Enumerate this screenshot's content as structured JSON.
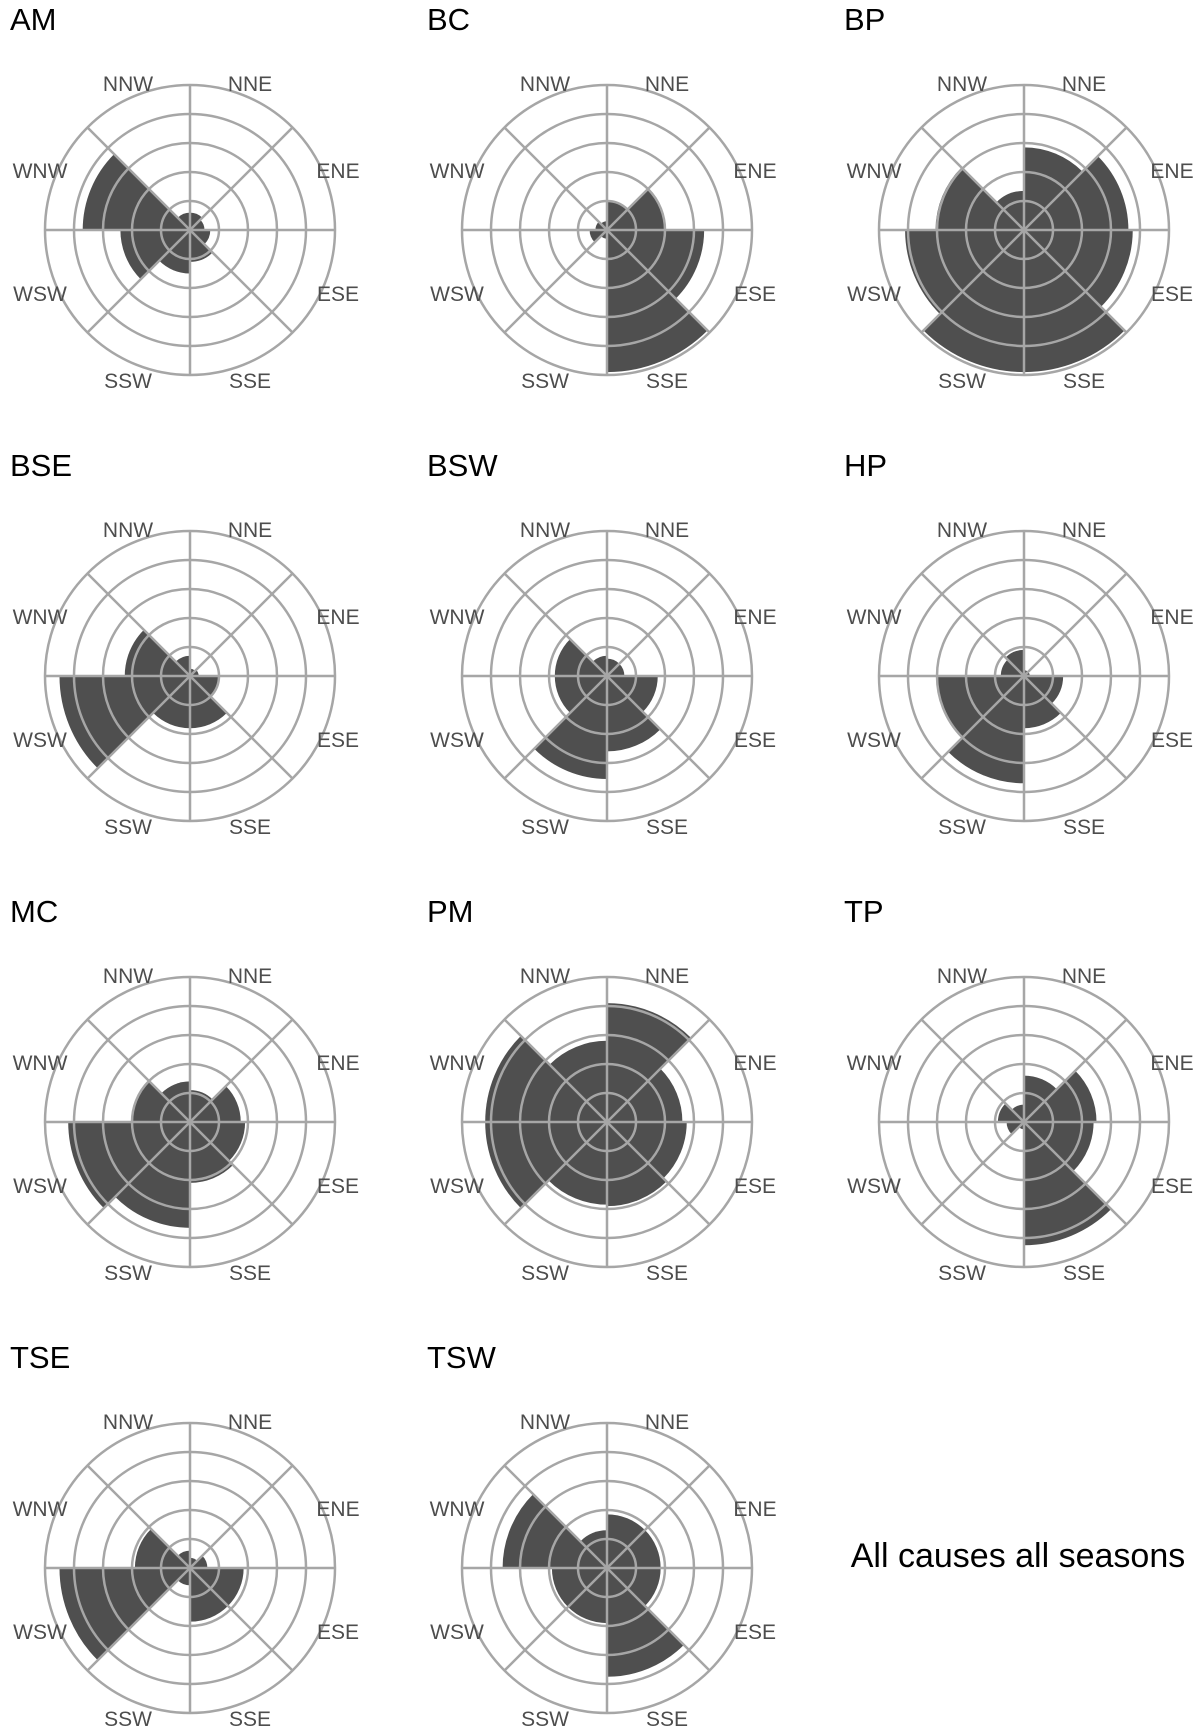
{
  "caption": "All causes all seasons",
  "chart_data": {
    "type": "polar-bar",
    "sectors": [
      "NNE",
      "ENE",
      "ESE",
      "SSE",
      "SSW",
      "WSW",
      "WNW",
      "NNW"
    ],
    "ring_values": [
      0.2,
      0.4,
      0.6,
      0.8,
      1.0
    ],
    "rmax": 1.0,
    "colors": {
      "wedge": "#4f4f4f",
      "grid": "#a6a6a6",
      "label": "#4d4d4d"
    },
    "panels": [
      {
        "title": "AM",
        "values": [
          0.12,
          0.1,
          0.14,
          0.22,
          0.3,
          0.48,
          0.74,
          0.12
        ]
      },
      {
        "title": "BC",
        "values": [
          0.2,
          0.4,
          0.67,
          0.98,
          0.06,
          0.12,
          0.08,
          0.06
        ]
      },
      {
        "title": "BP",
        "values": [
          0.57,
          0.72,
          0.75,
          0.98,
          0.98,
          0.82,
          0.61,
          0.27
        ]
      },
      {
        "title": "BSE",
        "values": [
          0.05,
          0.06,
          0.2,
          0.36,
          0.36,
          0.9,
          0.45,
          0.14
        ]
      },
      {
        "title": "BSW",
        "values": [
          0.12,
          0.12,
          0.35,
          0.52,
          0.71,
          0.36,
          0.36,
          0.14
        ]
      },
      {
        "title": "HP",
        "values": [
          0.04,
          0.04,
          0.27,
          0.36,
          0.74,
          0.6,
          0.16,
          0.18
        ]
      },
      {
        "title": "MC",
        "values": [
          0.22,
          0.35,
          0.38,
          0.42,
          0.73,
          0.84,
          0.4,
          0.28
        ]
      },
      {
        "title": "PM",
        "values": [
          0.82,
          0.52,
          0.55,
          0.58,
          0.57,
          0.84,
          0.84,
          0.56
        ]
      },
      {
        "title": "TP",
        "values": [
          0.32,
          0.5,
          0.48,
          0.85,
          0.05,
          0.12,
          0.18,
          0.12
        ]
      },
      {
        "title": "TSE",
        "values": [
          0.07,
          0.12,
          0.37,
          0.37,
          0.12,
          0.9,
          0.38,
          0.12
        ]
      },
      {
        "title": "TSW",
        "values": [
          0.37,
          0.37,
          0.37,
          0.75,
          0.38,
          0.38,
          0.72,
          0.26
        ]
      }
    ]
  }
}
